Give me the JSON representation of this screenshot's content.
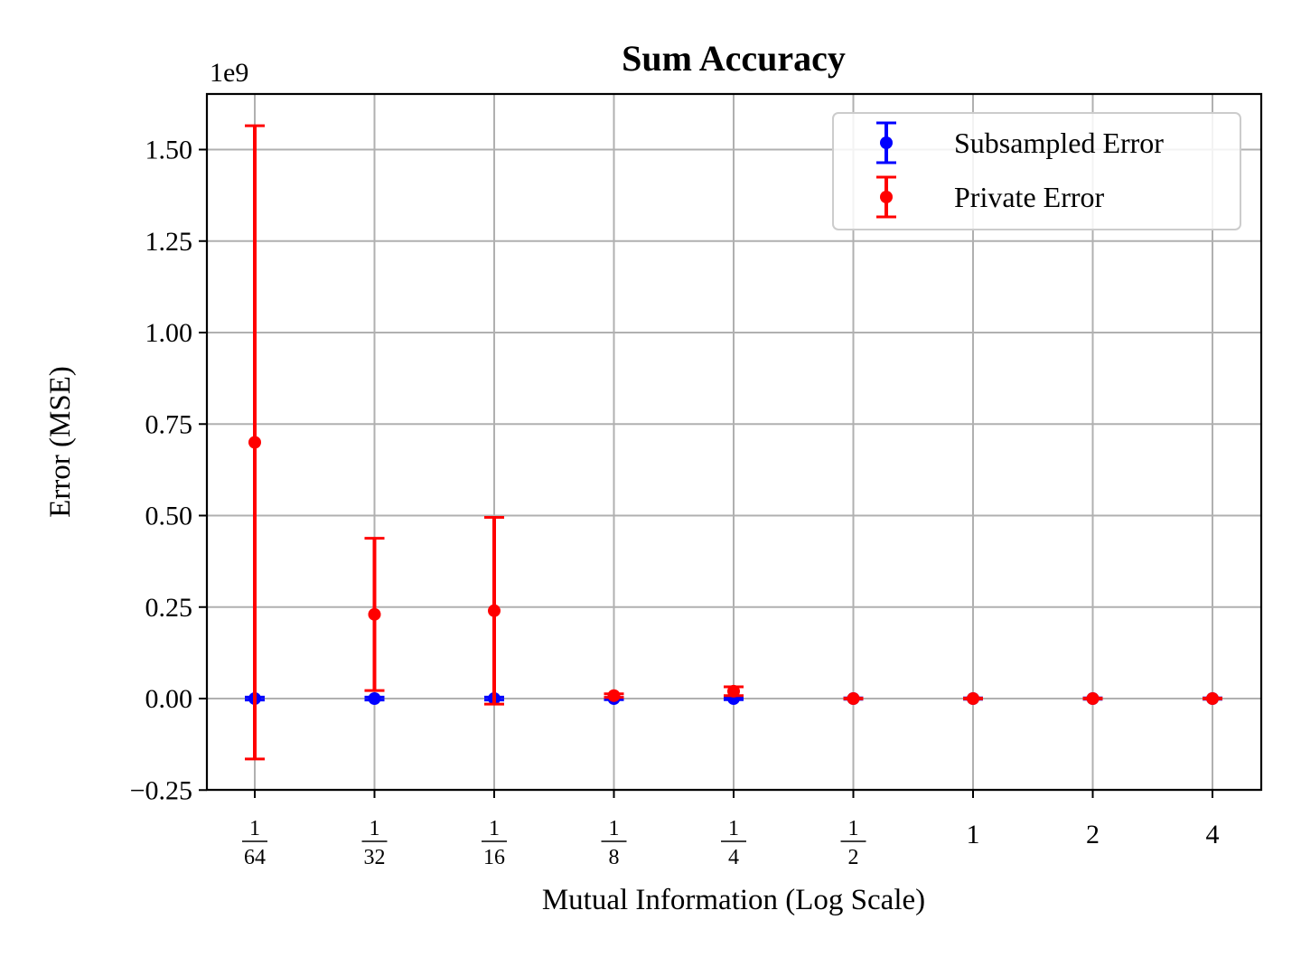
{
  "chart_data": {
    "type": "scatter",
    "title": "Sum Accuracy",
    "xlabel": "Mutual Information (Log Scale)",
    "ylabel": "Error (MSE)",
    "y_scale_label": "1e9",
    "x_scale": "log2",
    "x_ticks": [
      {
        "value": 0.015625,
        "num": "1",
        "den": "64"
      },
      {
        "value": 0.03125,
        "num": "1",
        "den": "32"
      },
      {
        "value": 0.0625,
        "num": "1",
        "den": "16"
      },
      {
        "value": 0.125,
        "num": "1",
        "den": "8"
      },
      {
        "value": 0.25,
        "num": "1",
        "den": "4"
      },
      {
        "value": 0.5,
        "num": "1",
        "den": "2"
      },
      {
        "value": 1,
        "text": "1"
      },
      {
        "value": 2,
        "text": "2"
      },
      {
        "value": 4,
        "text": "4"
      }
    ],
    "y_ticks": [
      "−0.25",
      "0.00",
      "0.25",
      "0.50",
      "0.75",
      "1.00",
      "1.25",
      "1.50"
    ],
    "y_tick_values": [
      -0.25,
      0.0,
      0.25,
      0.5,
      0.75,
      1.0,
      1.25,
      1.5
    ],
    "ylim": [
      -0.25,
      1.65
    ],
    "grid": true,
    "legend_position": "top-right",
    "series": [
      {
        "name": "Subsampled Error",
        "color": "#0000ff",
        "x": [
          0.015625,
          0.03125,
          0.0625,
          0.125,
          0.25,
          0.5,
          1,
          2,
          4
        ],
        "y": [
          0.0,
          0.0,
          0.0,
          0.0,
          0.0,
          0.0,
          0.0,
          0.0,
          0.0
        ],
        "yerr": [
          0.004,
          0.004,
          0.004,
          0.003,
          0.003,
          0.002,
          0.002,
          0.002,
          0.002
        ]
      },
      {
        "name": "Private Error",
        "color": "#ff0000",
        "x": [
          0.015625,
          0.03125,
          0.0625,
          0.125,
          0.25,
          0.5,
          1,
          2,
          4
        ],
        "y": [
          0.7,
          0.23,
          0.24,
          0.008,
          0.02,
          0.0,
          0.0,
          0.0,
          0.0
        ],
        "yerr": [
          0.865,
          0.208,
          0.255,
          0.005,
          0.012,
          0.001,
          0.001,
          0.001,
          0.001
        ]
      }
    ]
  }
}
